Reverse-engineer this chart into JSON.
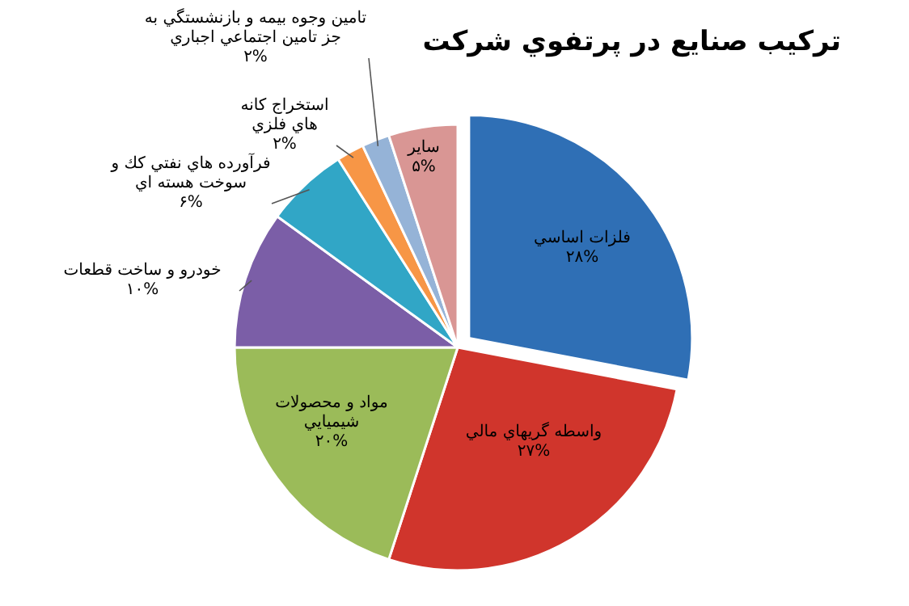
{
  "chart_data": {
    "type": "pie",
    "title": "تركيب صنايع در پرتفوي شركت",
    "categories": [
      "فلزات اساسي",
      "واسطه گريهاي مالي",
      "مواد و محصولات شيميايي",
      "خودرو و ساخت قطعات",
      "فرآورده هاي نفتي كك و سوخت هسته اي",
      "استخراج كانه هاي فلزي",
      "تامين وجوه بيمه و بازنشستگي به جز تامين اجتماعي اجباري",
      "ساير"
    ],
    "values": [
      28,
      27,
      20,
      10,
      6,
      2,
      2,
      5
    ],
    "value_labels": [
      "۲۸%",
      "۲۷%",
      "۲۰%",
      "۱۰%",
      "۶%",
      "۲%",
      "۲%",
      "۵%"
    ],
    "colors": [
      "#2f6fb5",
      "#d0352c",
      "#9bbb59",
      "#7b5ea7",
      "#31a6c6",
      "#f79646",
      "#95b3d7",
      "#d99694"
    ]
  }
}
